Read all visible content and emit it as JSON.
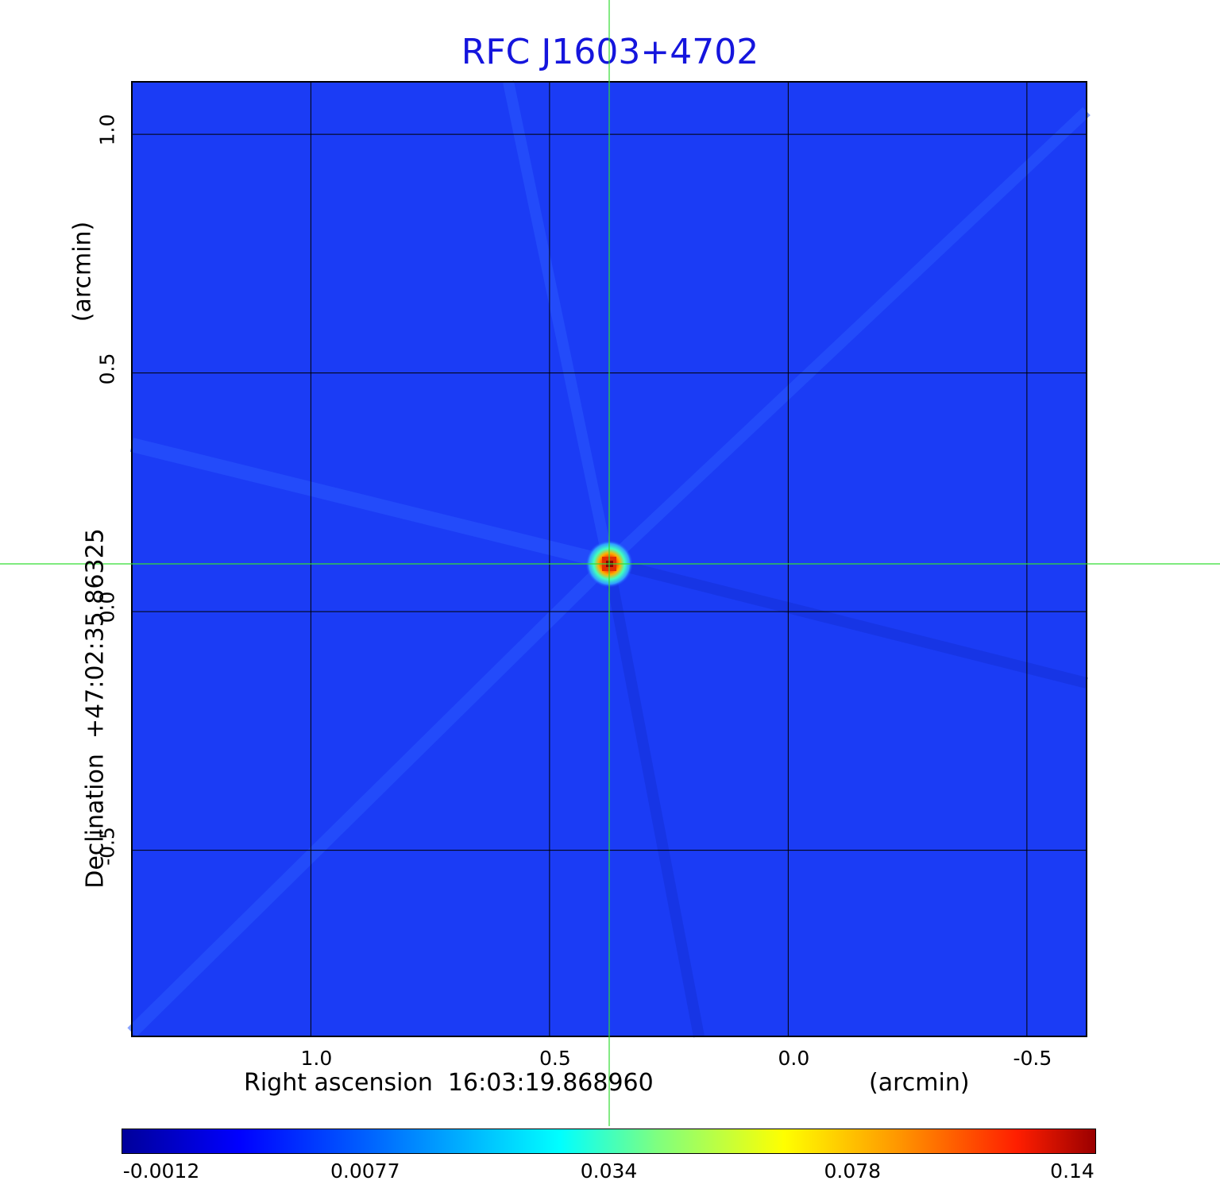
{
  "chart_data": {
    "type": "heatmap",
    "title": "RFC J1603+4702",
    "xlabel": "Right ascension  16:03:19.868960",
    "xunit": "(arcmin)",
    "ylabel": "Declination  +47:02:35.86325",
    "yunit": "(arcmin)",
    "x_ticks": [
      "1.0",
      "0.5",
      "0.0",
      "-0.5"
    ],
    "x_tick_values": [
      1.0,
      0.5,
      0.0,
      -0.5
    ],
    "y_ticks": [
      "1.0",
      "0.5",
      "0.0",
      "-0.5"
    ],
    "y_tick_values": [
      1.0,
      0.5,
      0.0,
      -0.5
    ],
    "xlim": [
      1.375,
      -0.625
    ],
    "ylim": [
      -0.89,
      1.11
    ],
    "grid": true,
    "source_peak": {
      "x": 0.375,
      "y": 0.1,
      "value": 0.14
    },
    "crosshair": {
      "x": 0.375,
      "y": 0.1,
      "color": "#33dd33"
    },
    "colorbar": {
      "ticks": [
        "-0.0012",
        "0.0077",
        "0.034",
        "0.078",
        "0.14"
      ],
      "colormap": "jet",
      "placement": "bottom"
    },
    "colors": {
      "title": "#1515dd",
      "background": "#1b3cf5",
      "grid": "#000000"
    }
  }
}
